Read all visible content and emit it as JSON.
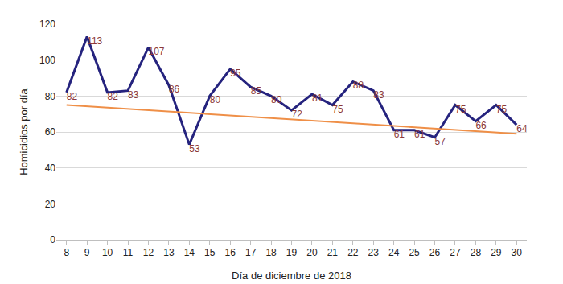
{
  "chart_data": {
    "type": "line",
    "x_label": "Día de diciembre de 2018",
    "y_label": "Homicidios por día",
    "categories": [
      "8",
      "9",
      "10",
      "11",
      "12",
      "13",
      "14",
      "15",
      "16",
      "17",
      "18",
      "19",
      "20",
      "21",
      "22",
      "23",
      "24",
      "25",
      "26",
      "27",
      "28",
      "29",
      "30"
    ],
    "series": [
      {
        "color": "#25237e",
        "type": "line",
        "data_labels": true,
        "values": [
          82,
          113,
          82,
          83,
          107,
          86,
          53,
          80,
          95,
          85,
          80,
          72,
          81,
          75,
          88,
          83,
          61,
          61,
          57,
          75,
          66,
          75,
          64
        ]
      },
      {
        "color": "#ef8f47",
        "type": "line",
        "line_style": "solid",
        "data_labels": false,
        "values": [
          75,
          null,
          null,
          null,
          null,
          null,
          null,
          null,
          null,
          null,
          null,
          null,
          null,
          null,
          null,
          null,
          null,
          null,
          null,
          null,
          null,
          null,
          59
        ]
      }
    ],
    "ylim": [
      0,
      120
    ],
    "yticks": [
      0,
      20,
      40,
      60,
      80,
      100,
      120
    ],
    "grid": true
  }
}
